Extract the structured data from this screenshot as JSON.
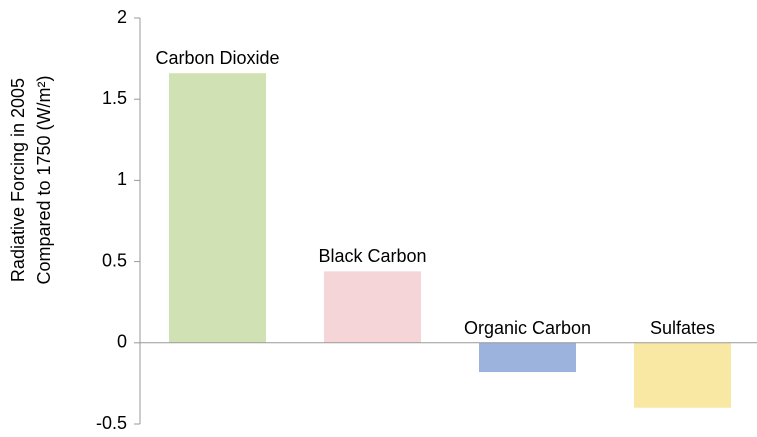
{
  "chart_data": {
    "type": "bar",
    "y_label": "Radiative Forcing in 2005 Compared to 1750 (W/m²)",
    "categories": [
      "Carbon Dioxide",
      "Black Carbon",
      "Organic Carbon",
      "Sulfates"
    ],
    "values": [
      1.66,
      0.44,
      -0.18,
      -0.4
    ],
    "colors": [
      "#d0e2b3",
      "#f5d5d8",
      "#9bb3dd",
      "#f8e8a4"
    ],
    "ylim": [
      -0.5,
      2
    ],
    "yticks": [
      -0.5,
      0,
      0.5,
      1,
      1.5,
      2
    ],
    "grid": false
  }
}
